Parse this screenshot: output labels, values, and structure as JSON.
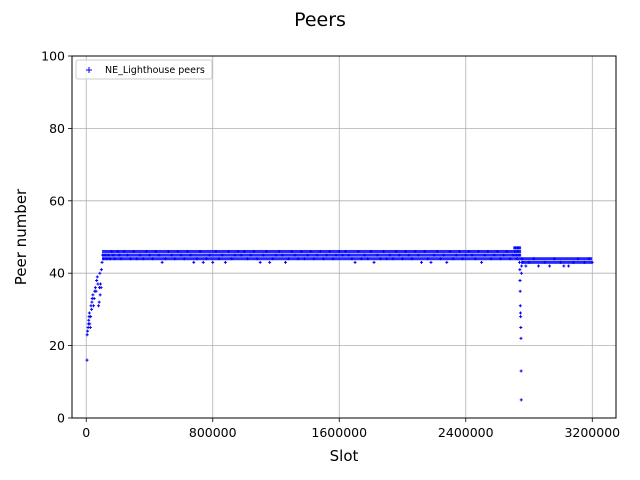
{
  "chart_data": {
    "type": "scatter",
    "title": "Peers",
    "xlabel": "Slot",
    "ylabel": "Peer number",
    "xlim": [
      -90000,
      3350000
    ],
    "ylim": [
      0,
      100
    ],
    "xticks": [
      0,
      800000,
      1600000,
      2400000,
      3200000
    ],
    "xtick_labels": [
      "0",
      "800000",
      "1600000",
      "2400000",
      "3200000"
    ],
    "yticks": [
      0,
      20,
      40,
      60,
      80,
      100
    ],
    "ytick_labels": [
      "0",
      "20",
      "40",
      "60",
      "80",
      "100"
    ],
    "grid": true,
    "legend_position": "top-left",
    "marker": "+",
    "color": "#0000ff",
    "series": [
      {
        "name": "NE_Lighthouse peers",
        "points": [
          [
            5000,
            16
          ],
          [
            6000,
            23
          ],
          [
            9000,
            24
          ],
          [
            12000,
            25
          ],
          [
            14000,
            26
          ],
          [
            16000,
            27
          ],
          [
            18000,
            28
          ],
          [
            20000,
            29
          ],
          [
            22000,
            26
          ],
          [
            26000,
            25
          ],
          [
            28000,
            28
          ],
          [
            30000,
            31
          ],
          [
            34000,
            30
          ],
          [
            36000,
            32
          ],
          [
            38000,
            33
          ],
          [
            42000,
            34
          ],
          [
            46000,
            31
          ],
          [
            50000,
            33
          ],
          [
            54000,
            35
          ],
          [
            58000,
            36
          ],
          [
            62000,
            35
          ],
          [
            66000,
            38
          ],
          [
            70000,
            39
          ],
          [
            74000,
            37
          ],
          [
            78000,
            31
          ],
          [
            82000,
            32
          ],
          [
            84000,
            36
          ],
          [
            86000,
            40
          ],
          [
            88000,
            34
          ],
          [
            90000,
            37
          ],
          [
            94000,
            36
          ],
          [
            96000,
            41
          ],
          [
            100000,
            43
          ],
          [
            104000,
            45
          ],
          [
            110000,
            44
          ],
          [
            120000,
            45
          ],
          [
            130000,
            44
          ],
          [
            140000,
            45
          ],
          [
            150000,
            44
          ],
          [
            160000,
            46
          ],
          [
            170000,
            45
          ],
          [
            180000,
            44
          ],
          [
            200000,
            46
          ],
          [
            210000,
            45
          ],
          [
            220000,
            44
          ],
          [
            240000,
            46
          ],
          [
            260000,
            45
          ],
          [
            280000,
            44
          ],
          [
            300000,
            46
          ],
          [
            320000,
            44
          ],
          [
            340000,
            45
          ],
          [
            360000,
            44
          ],
          [
            380000,
            46
          ],
          [
            400000,
            45
          ],
          [
            420000,
            44
          ],
          [
            440000,
            46
          ],
          [
            460000,
            45
          ],
          [
            480000,
            43
          ],
          [
            500000,
            44
          ],
          [
            520000,
            46
          ],
          [
            540000,
            45
          ],
          [
            560000,
            44
          ],
          [
            580000,
            46
          ],
          [
            600000,
            45
          ],
          [
            620000,
            44
          ],
          [
            640000,
            46
          ],
          [
            660000,
            45
          ],
          [
            680000,
            43
          ],
          [
            700000,
            44
          ],
          [
            720000,
            46
          ],
          [
            740000,
            43
          ],
          [
            760000,
            44
          ],
          [
            780000,
            45
          ],
          [
            800000,
            43
          ],
          [
            820000,
            46
          ],
          [
            840000,
            44
          ],
          [
            860000,
            45
          ],
          [
            880000,
            43
          ],
          [
            900000,
            46
          ],
          [
            920000,
            44
          ],
          [
            940000,
            45
          ],
          [
            960000,
            46
          ],
          [
            980000,
            45
          ],
          [
            1000000,
            46
          ],
          [
            1020000,
            44
          ],
          [
            1040000,
            45
          ],
          [
            1060000,
            46
          ],
          [
            1080000,
            44
          ],
          [
            1100000,
            43
          ],
          [
            1120000,
            45
          ],
          [
            1140000,
            46
          ],
          [
            1160000,
            43
          ],
          [
            1180000,
            44
          ],
          [
            1200000,
            45
          ],
          [
            1220000,
            46
          ],
          [
            1240000,
            45
          ],
          [
            1260000,
            43
          ],
          [
            1280000,
            44
          ],
          [
            1300000,
            46
          ],
          [
            1320000,
            45
          ],
          [
            1340000,
            44
          ],
          [
            1360000,
            46
          ],
          [
            1380000,
            44
          ],
          [
            1400000,
            45
          ],
          [
            1420000,
            46
          ],
          [
            1440000,
            44
          ],
          [
            1460000,
            45
          ],
          [
            1480000,
            46
          ],
          [
            1500000,
            44
          ],
          [
            1520000,
            45
          ],
          [
            1540000,
            46
          ],
          [
            1560000,
            44
          ],
          [
            1580000,
            45
          ],
          [
            1600000,
            46
          ],
          [
            1620000,
            45
          ],
          [
            1640000,
            46
          ],
          [
            1660000,
            45
          ],
          [
            1680000,
            44
          ],
          [
            1700000,
            43
          ],
          [
            1720000,
            46
          ],
          [
            1740000,
            44
          ],
          [
            1760000,
            45
          ],
          [
            1780000,
            44
          ],
          [
            1800000,
            46
          ],
          [
            1820000,
            43
          ],
          [
            1840000,
            45
          ],
          [
            1860000,
            44
          ],
          [
            1880000,
            46
          ],
          [
            1900000,
            44
          ],
          [
            1920000,
            45
          ],
          [
            1940000,
            44
          ],
          [
            1960000,
            46
          ],
          [
            1980000,
            45
          ],
          [
            2000000,
            44
          ],
          [
            2020000,
            46
          ],
          [
            2040000,
            45
          ],
          [
            2060000,
            44
          ],
          [
            2080000,
            46
          ],
          [
            2100000,
            45
          ],
          [
            2120000,
            43
          ],
          [
            2140000,
            46
          ],
          [
            2160000,
            44
          ],
          [
            2180000,
            43
          ],
          [
            2200000,
            45
          ],
          [
            2220000,
            46
          ],
          [
            2240000,
            44
          ],
          [
            2260000,
            45
          ],
          [
            2280000,
            43
          ],
          [
            2300000,
            46
          ],
          [
            2320000,
            44
          ],
          [
            2340000,
            45
          ],
          [
            2360000,
            46
          ],
          [
            2380000,
            44
          ],
          [
            2400000,
            45
          ],
          [
            2420000,
            46
          ],
          [
            2440000,
            45
          ],
          [
            2460000,
            44
          ],
          [
            2480000,
            46
          ],
          [
            2500000,
            43
          ],
          [
            2520000,
            45
          ],
          [
            2540000,
            46
          ],
          [
            2560000,
            44
          ],
          [
            2580000,
            45
          ],
          [
            2600000,
            46
          ],
          [
            2620000,
            44
          ],
          [
            2640000,
            45
          ],
          [
            2660000,
            46
          ],
          [
            2680000,
            44
          ],
          [
            2700000,
            45
          ],
          [
            2710000,
            46
          ],
          [
            2715000,
            47
          ],
          [
            2720000,
            45
          ],
          [
            2725000,
            44
          ],
          [
            2728000,
            47
          ],
          [
            2730000,
            46
          ],
          [
            2735000,
            47
          ],
          [
            2738000,
            45
          ],
          [
            2740000,
            43
          ],
          [
            2742000,
            41
          ],
          [
            2743000,
            38
          ],
          [
            2744000,
            35
          ],
          [
            2745000,
            31
          ],
          [
            2746000,
            29
          ],
          [
            2747000,
            28
          ],
          [
            2748000,
            25
          ],
          [
            2749000,
            22
          ],
          [
            2750000,
            13
          ],
          [
            2751000,
            5
          ],
          [
            2752000,
            40
          ],
          [
            2753000,
            42
          ],
          [
            2755000,
            44
          ],
          [
            2760000,
            43
          ],
          [
            2780000,
            42
          ],
          [
            2800000,
            43
          ],
          [
            2830000,
            44
          ],
          [
            2860000,
            42
          ],
          [
            2900000,
            43
          ],
          [
            2930000,
            42
          ],
          [
            2960000,
            44
          ],
          [
            3000000,
            43
          ],
          [
            3020000,
            42
          ],
          [
            3050000,
            42
          ],
          [
            3080000,
            43
          ],
          [
            3110000,
            44
          ],
          [
            3150000,
            43
          ],
          [
            3180000,
            44
          ],
          [
            3200000,
            43
          ]
        ],
        "bands": [
          {
            "x_from": 100000,
            "x_to": 2700000,
            "values": [
              44,
              45,
              46
            ]
          },
          {
            "x_from": 2700000,
            "x_to": 2750000,
            "values": [
              44,
              45,
              46,
              47
            ]
          },
          {
            "x_from": 2750000,
            "x_to": 3200000,
            "values": [
              43,
              44
            ]
          }
        ]
      }
    ]
  }
}
